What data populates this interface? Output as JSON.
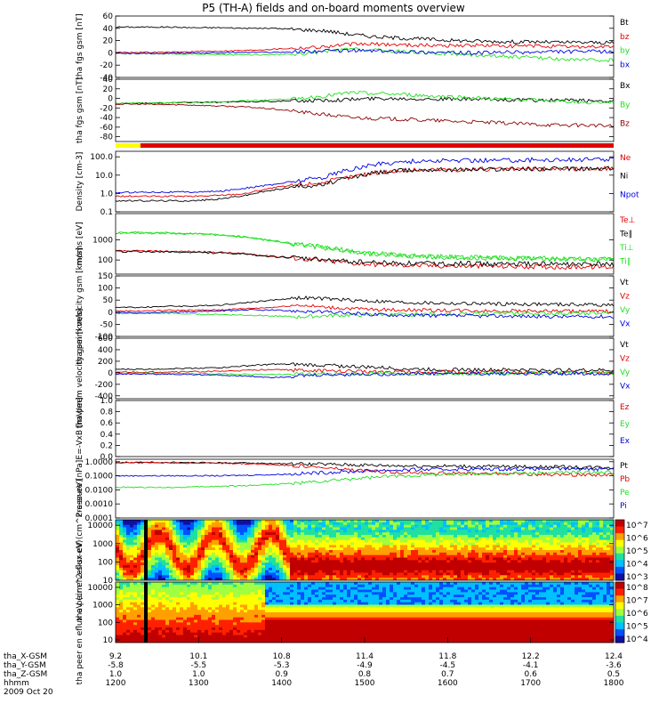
{
  "title": "P5 (TH-A) fields and on-board moments overview",
  "colors": {
    "black": "#000000",
    "red": "#e00000",
    "green": "#20e020",
    "blue": "#0000e0",
    "darkred": "#8b0000",
    "yellow": "#ffff00"
  },
  "chart_data": [
    {
      "type": "line",
      "ylabel": "tha fgs gsm [nT]",
      "ylim": [
        -40,
        60
      ],
      "ticks": [
        "60",
        "40",
        "20",
        "0",
        "-20",
        "-40"
      ],
      "tick_values": [
        60,
        40,
        20,
        0,
        -20,
        -40
      ],
      "series": [
        {
          "name": "Bt",
          "color": "black",
          "values": [
            42,
            42,
            42,
            41,
            41,
            40,
            40,
            38,
            36,
            30,
            26,
            24,
            22,
            20,
            19,
            18,
            18,
            17,
            17,
            16
          ]
        },
        {
          "name": "bz",
          "color": "red",
          "values": [
            1,
            1,
            1,
            2,
            3,
            4,
            6,
            8,
            10,
            14,
            14,
            13,
            12,
            12,
            12,
            11,
            11,
            10,
            10,
            10
          ]
        },
        {
          "name": "by",
          "color": "green",
          "values": [
            -1,
            -1,
            -2,
            -2,
            -3,
            -3,
            -3,
            -2,
            2,
            6,
            4,
            2,
            0,
            -2,
            -4,
            -6,
            -8,
            -10,
            -12,
            -12
          ]
        },
        {
          "name": "bx",
          "color": "blue",
          "values": [
            -1,
            -1,
            -1,
            0,
            0,
            1,
            1,
            2,
            3,
            4,
            3,
            2,
            1,
            0,
            0,
            1,
            1,
            2,
            2,
            2
          ]
        }
      ]
    },
    {
      "type": "line",
      "ylabel": "tha fgs gsm [nT]",
      "ylim": [
        -90,
        40
      ],
      "ticks": [
        "40",
        "20",
        "0",
        "-20",
        "-40",
        "-60",
        "-80"
      ],
      "tick_values": [
        40,
        20,
        0,
        -20,
        -40,
        -60,
        -80
      ],
      "series": [
        {
          "name": "Bx",
          "color": "black",
          "values": [
            -10,
            -10,
            -9,
            -8,
            -8,
            -7,
            -6,
            -5,
            -4,
            -2,
            0,
            0,
            -1,
            -2,
            -2,
            -3,
            -4,
            -4,
            -5,
            -5
          ]
        },
        {
          "name": "By",
          "color": "green",
          "values": [
            -10,
            -10,
            -9,
            -8,
            -7,
            -5,
            -3,
            0,
            5,
            12,
            10,
            8,
            5,
            3,
            0,
            -2,
            -4,
            -6,
            -8,
            -8
          ]
        },
        {
          "name": "Bz",
          "color": "darkred",
          "values": [
            -12,
            -12,
            -13,
            -14,
            -16,
            -18,
            -22,
            -28,
            -34,
            -40,
            -42,
            -44,
            -46,
            -48,
            -50,
            -52,
            -54,
            -56,
            -56,
            -58
          ]
        }
      ]
    },
    {
      "type": "line",
      "ylabel": "Density [cm-3]",
      "yscale": "log",
      "ylim": [
        0.1,
        200
      ],
      "ticks": [
        "100.0",
        "10.0",
        "1.0",
        "0.1"
      ],
      "tick_values": [
        100,
        10,
        1,
        0.1
      ],
      "series": [
        {
          "name": "Ne",
          "color": "red",
          "values": [
            0.7,
            0.7,
            0.7,
            0.7,
            0.8,
            1,
            2,
            3,
            4,
            8,
            14,
            18,
            20,
            20,
            21,
            21,
            22,
            22,
            22,
            23
          ]
        },
        {
          "name": "Ni",
          "color": "black",
          "values": [
            0.4,
            0.4,
            0.4,
            0.4,
            0.5,
            0.8,
            1.5,
            2.5,
            3,
            7,
            14,
            18,
            20,
            20,
            21,
            21,
            22,
            22,
            22,
            23
          ]
        },
        {
          "name": "Npot",
          "color": "blue",
          "values": [
            1.1,
            1.2,
            1.2,
            1.2,
            1.3,
            2,
            3,
            5,
            8,
            20,
            40,
            55,
            60,
            62,
            64,
            66,
            68,
            70,
            70,
            72
          ]
        }
      ]
    },
    {
      "type": "line",
      "ylabel": "moms [eV]",
      "yscale": "log",
      "ylim": [
        20,
        20000
      ],
      "ticks": [
        "1000",
        "100"
      ],
      "tick_values": [
        1000,
        100
      ],
      "series": [
        {
          "name": "Te⊥",
          "color": "red",
          "values": [
            280,
            280,
            270,
            260,
            240,
            200,
            150,
            120,
            90,
            70,
            60,
            55,
            52,
            50,
            50,
            48,
            48,
            46,
            46,
            45
          ]
        },
        {
          "name": "Te∥",
          "color": "black",
          "values": [
            260,
            260,
            250,
            240,
            220,
            190,
            150,
            120,
            100,
            85,
            75,
            70,
            68,
            66,
            65,
            64,
            63,
            62,
            62,
            62
          ]
        },
        {
          "name": "Ti⊥",
          "color": "green",
          "values": [
            2200,
            2300,
            2200,
            2100,
            1800,
            1400,
            900,
            600,
            400,
            280,
            200,
            170,
            150,
            140,
            130,
            125,
            120,
            115,
            112,
            110
          ]
        },
        {
          "name": "Ti∥",
          "color": "green",
          "values": [
            2100,
            2200,
            2100,
            2000,
            1700,
            1300,
            850,
            560,
            380,
            260,
            190,
            160,
            145,
            135,
            125,
            120,
            115,
            110,
            108,
            105
          ]
        }
      ]
    },
    {
      "type": "line",
      "ylabel": "tha peim velocity gsm [km/s]",
      "ylim": [
        -100,
        150
      ],
      "ticks": [
        "150",
        "100",
        "50",
        "0",
        "-50",
        "-100"
      ],
      "tick_values": [
        150,
        100,
        50,
        0,
        -50,
        -100
      ],
      "series": [
        {
          "name": "Vt",
          "color": "black",
          "values": [
            20,
            20,
            25,
            25,
            30,
            40,
            50,
            60,
            55,
            50,
            45,
            40,
            38,
            36,
            35,
            34,
            33,
            32,
            32,
            30
          ]
        },
        {
          "name": "Vz",
          "color": "red",
          "values": [
            5,
            5,
            8,
            8,
            10,
            15,
            20,
            30,
            20,
            15,
            10,
            10,
            8,
            8,
            6,
            6,
            5,
            5,
            4,
            4
          ]
        },
        {
          "name": "Vy",
          "color": "green",
          "values": [
            -5,
            -5,
            -5,
            -8,
            -10,
            -12,
            -15,
            -20,
            -15,
            -12,
            -10,
            -10,
            -8,
            -8,
            -6,
            -6,
            -5,
            -5,
            -4,
            -4
          ]
        },
        {
          "name": "Vx",
          "color": "blue",
          "values": [
            -2,
            -2,
            0,
            2,
            5,
            10,
            8,
            5,
            0,
            -5,
            -10,
            -12,
            -14,
            -15,
            -16,
            -16,
            -17,
            -18,
            -18,
            -18
          ]
        }
      ]
    },
    {
      "type": "line",
      "ylabel": "tha peem velocity gsm [km/s]",
      "ylim": [
        -450,
        600
      ],
      "ticks": [
        "600",
        "400",
        "200",
        "0",
        "-200",
        "-400"
      ],
      "tick_values": [
        600,
        400,
        200,
        0,
        -200,
        -400
      ],
      "series": [
        {
          "name": "Vt",
          "color": "black",
          "values": [
            60,
            60,
            70,
            80,
            90,
            120,
            150,
            140,
            130,
            110,
            90,
            70,
            60,
            55,
            50,
            50,
            48,
            46,
            45,
            45
          ]
        },
        {
          "name": "Vz",
          "color": "red",
          "values": [
            10,
            10,
            15,
            20,
            25,
            40,
            60,
            40,
            30,
            25,
            20,
            15,
            12,
            10,
            10,
            8,
            8,
            6,
            6,
            6
          ]
        },
        {
          "name": "Vy",
          "color": "green",
          "values": [
            -10,
            -10,
            -12,
            -15,
            -20,
            -25,
            -30,
            -25,
            -20,
            -18,
            -15,
            -12,
            -10,
            -10,
            -8,
            -8,
            -6,
            -6,
            -5,
            -5
          ]
        },
        {
          "name": "Vx",
          "color": "blue",
          "values": [
            -20,
            -20,
            -25,
            -30,
            -40,
            -60,
            -80,
            -60,
            -40,
            -30,
            -25,
            -20,
            -18,
            -16,
            -15,
            -14,
            -13,
            -12,
            -12,
            -12
          ]
        }
      ]
    },
    {
      "type": "line",
      "ylabel": "E=-VxB [mV/m]",
      "ylim": [
        0,
        1
      ],
      "ticks": [
        "1.0",
        "0.8",
        "0.6",
        "0.4",
        "0.2",
        "0.0"
      ],
      "tick_values": [
        1.0,
        0.8,
        0.6,
        0.4,
        0.2,
        0.0
      ],
      "series": [
        {
          "name": "Ez",
          "color": "red",
          "values": []
        },
        {
          "name": "Ey",
          "color": "green",
          "values": []
        },
        {
          "name": "Ex",
          "color": "blue",
          "values": []
        }
      ]
    },
    {
      "type": "line",
      "ylabel": "Pressure [nPa]",
      "yscale": "log",
      "ylim": [
        0.0001,
        1.5
      ],
      "ticks": [
        "1.0000",
        "0.1000",
        "0.0100",
        "0.0010",
        "0.0001"
      ],
      "tick_values": [
        1,
        0.1,
        0.01,
        0.001,
        0.0001
      ],
      "series": [
        {
          "name": "Pt",
          "color": "black",
          "values": [
            0.9,
            0.9,
            0.88,
            0.86,
            0.84,
            0.8,
            0.75,
            0.7,
            0.65,
            0.6,
            0.55,
            0.52,
            0.5,
            0.48,
            0.46,
            0.45,
            0.44,
            0.42,
            0.41,
            0.4
          ]
        },
        {
          "name": "Pb",
          "color": "red",
          "values": [
            0.85,
            0.85,
            0.82,
            0.8,
            0.78,
            0.72,
            0.62,
            0.5,
            0.35,
            0.25,
            0.2,
            0.18,
            0.16,
            0.15,
            0.14,
            0.14,
            0.13,
            0.12,
            0.12,
            0.12
          ]
        },
        {
          "name": "Pe",
          "color": "green",
          "values": [
            0.015,
            0.015,
            0.015,
            0.016,
            0.018,
            0.02,
            0.025,
            0.03,
            0.04,
            0.06,
            0.08,
            0.1,
            0.12,
            0.13,
            0.14,
            0.15,
            0.16,
            0.17,
            0.17,
            0.18
          ]
        },
        {
          "name": "Pi",
          "color": "blue",
          "values": [
            0.1,
            0.1,
            0.1,
            0.1,
            0.1,
            0.11,
            0.12,
            0.14,
            0.17,
            0.2,
            0.24,
            0.26,
            0.28,
            0.29,
            0.3,
            0.3,
            0.31,
            0.31,
            0.32,
            0.32
          ]
        }
      ]
    },
    {
      "type": "heatmap",
      "ylabel": "tha peir en eflux eV (cm^2-s-sr-eV)",
      "yscale": "log",
      "ylim": [
        10,
        20000
      ],
      "ticks": [
        "10000",
        "1000",
        "100",
        "10"
      ],
      "tick_values": [
        10000,
        1000,
        100,
        10
      ],
      "colorbar_ticks": [
        "10^7",
        "10^6",
        "10^5",
        "10^4",
        "10^3"
      ]
    },
    {
      "type": "heatmap",
      "ylabel": "tha peer en eflux eV (cm^2-s-sr-eV)",
      "yscale": "log",
      "ylim": [
        7,
        20000
      ],
      "ticks": [
        "10000",
        "1000",
        "100",
        "10"
      ],
      "tick_values": [
        10000,
        1000,
        100,
        10
      ],
      "colorbar_ticks": [
        "10^8",
        "10^7",
        "10^6",
        "10^5",
        "10^4"
      ]
    }
  ],
  "ephemeris": {
    "rows": [
      {
        "label": "tha_X-GSM",
        "values": [
          "9.2",
          "10.1",
          "10.8",
          "11.4",
          "11.8",
          "12.2",
          "12.4"
        ]
      },
      {
        "label": "tha_Y-GSM",
        "values": [
          "-5.8",
          "-5.5",
          "-5.3",
          "-4.9",
          "-4.5",
          "-4.1",
          "-3.6"
        ]
      },
      {
        "label": "tha_Z-GSM",
        "values": [
          "1.0",
          "1.0",
          "0.9",
          "0.8",
          "0.7",
          "0.6",
          "0.5"
        ]
      },
      {
        "label": "hhmm",
        "values": [
          "1200",
          "1300",
          "1400",
          "1500",
          "1600",
          "1700",
          "1800"
        ]
      }
    ],
    "date": "2009 Oct 20"
  }
}
